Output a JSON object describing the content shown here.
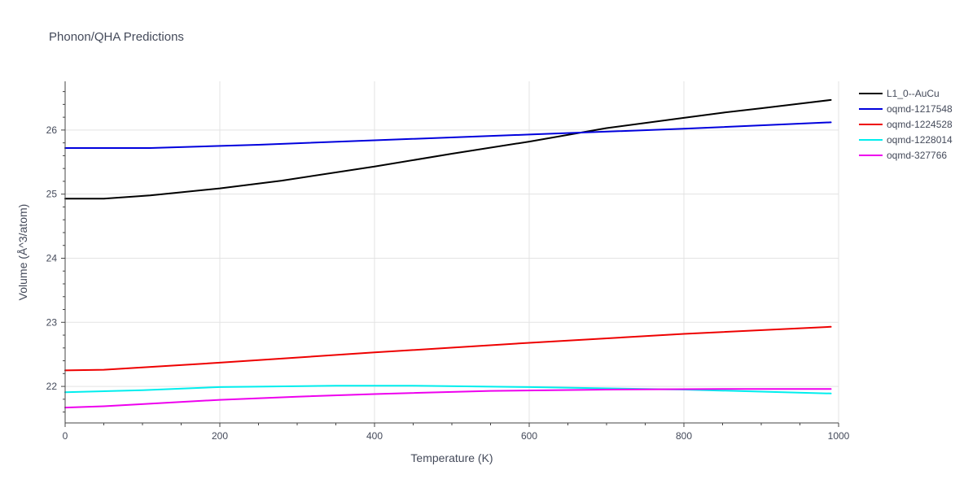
{
  "chart_data": {
    "type": "line",
    "title": "Phonon/QHA Predictions",
    "xlabel": "Temperature (K)",
    "ylabel": "Volume (Å^3/atom)",
    "xlim": [
      0,
      1000
    ],
    "ylim": [
      21.43,
      26.76
    ],
    "x_ticks": [
      0,
      200,
      400,
      600,
      800,
      1000
    ],
    "y_ticks": [
      22,
      23,
      24,
      25,
      26
    ],
    "grid": true,
    "legend_position": "top-right",
    "series": [
      {
        "name": "L1_0--AuCu",
        "color": "#000000",
        "x": [
          0,
          50,
          110,
          200,
          280,
          400,
          500,
          600,
          700,
          800,
          850,
          900,
          990
        ],
        "y": [
          24.93,
          24.93,
          24.98,
          25.09,
          25.21,
          25.43,
          25.63,
          25.82,
          26.03,
          26.19,
          26.27,
          26.34,
          26.47
        ]
      },
      {
        "name": "oqmd-1217548",
        "color": "#0000dd",
        "x": [
          0,
          110,
          250,
          400,
          600,
          800,
          990
        ],
        "y": [
          25.72,
          25.72,
          25.77,
          25.84,
          25.93,
          26.02,
          26.12
        ]
      },
      {
        "name": "oqmd-1224528",
        "color": "#ee0000",
        "x": [
          0,
          50,
          200,
          400,
          600,
          800,
          990
        ],
        "y": [
          22.25,
          22.26,
          22.37,
          22.53,
          22.68,
          22.82,
          22.93
        ]
      },
      {
        "name": "oqmd-1228014",
        "color": "#00eeee",
        "x": [
          0,
          100,
          200,
          350,
          450,
          600,
          800,
          990
        ],
        "y": [
          21.91,
          21.94,
          21.99,
          22.01,
          22.01,
          21.99,
          21.95,
          21.89
        ]
      },
      {
        "name": "oqmd-327766",
        "color": "#ee00ee",
        "x": [
          0,
          50,
          200,
          300,
          400,
          550,
          700,
          850,
          990
        ],
        "y": [
          21.67,
          21.69,
          21.79,
          21.84,
          21.88,
          21.93,
          21.95,
          21.96,
          21.96
        ]
      }
    ]
  }
}
